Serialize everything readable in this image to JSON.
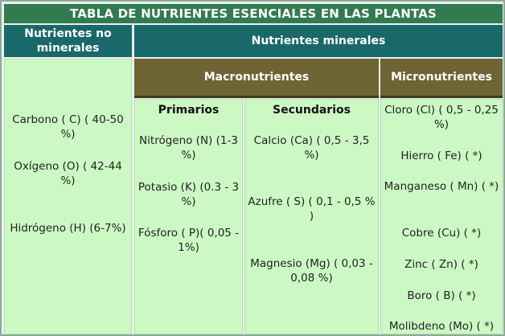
{
  "title": "TABLA DE NUTRIENTES ESENCIALES EN LAS PLANTAS",
  "headers": {
    "no_minerales": "Nutrientes no minerales",
    "minerales": "Nutrientes minerales",
    "macro": "Macronutrientes",
    "micro": "Micronutrientes",
    "primarios": "Primarios",
    "secundarios": "Secundarios"
  },
  "no_minerales": [
    "Carbono ( C) ( 40-50 %)",
    "Oxígeno (O) ( 42-44 %)",
    "Hidrógeno (H) (6-7%)"
  ],
  "primarios": [
    "Nitrógeno (N) (1-3 %)",
    "Potasio (K) (0.3 - 3 %)",
    "Fósforo ( P)( 0,05 - 1%)"
  ],
  "secundarios": [
    "Calcio (Ca) ( 0,5 - 3,5 %)",
    "Azufre ( S) ( 0,1 - 0,5 % )",
    "Magnesio (Mg) ( 0,03 - 0,08 %)"
  ],
  "micro": [
    "Cloro (Cl) ( 0,5 - 0,25 %)",
    "Hierro ( Fe) ( *)",
    "Manganeso ( Mn) ( *)",
    "Cobre (Cu) ( *)",
    "Zinc ( Zn) ( *)",
    "Boro ( B) ( *)",
    "Molibdeno (Mo) ( *)"
  ]
}
